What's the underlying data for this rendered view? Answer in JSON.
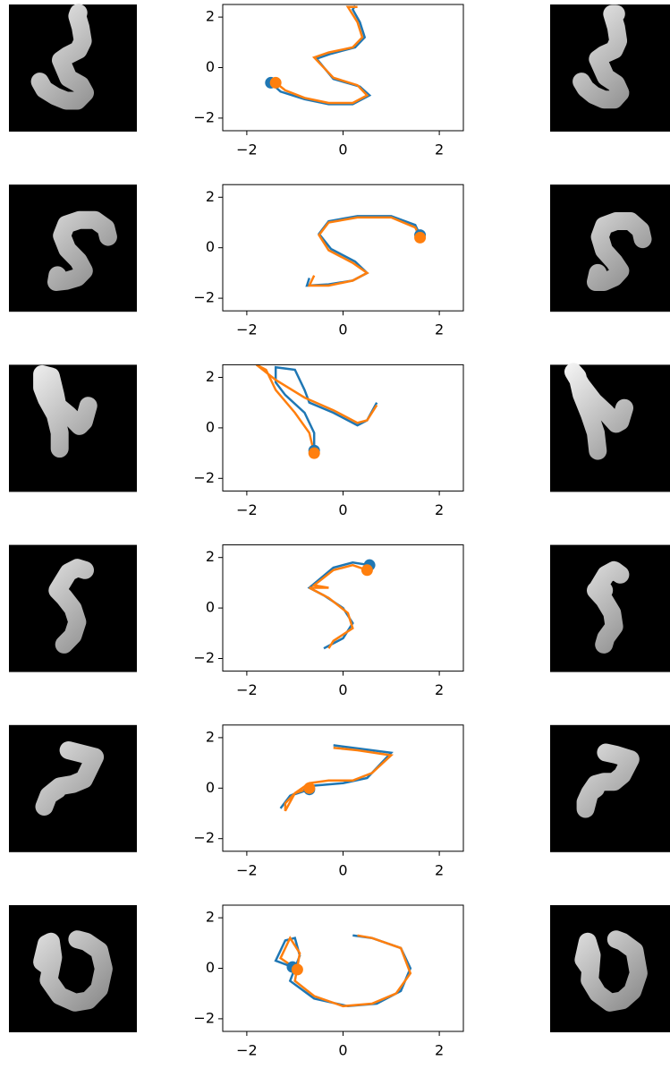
{
  "chart_data": [
    {
      "type": "line",
      "start_marker": true,
      "xlim": [
        -2.5,
        2.5
      ],
      "ylim": [
        -2.5,
        2.5
      ],
      "xticks": [
        {
          "value": -2,
          "label": "−2"
        },
        0,
        2
      ],
      "yticks": [
        {
          "value": -2,
          "label": "−2"
        },
        0,
        2
      ],
      "series": [
        {
          "color": "#1f77b4",
          "x": [
            -1.5,
            -1.3,
            -0.8,
            -0.3,
            0.2,
            0.55,
            0.35,
            -0.2,
            -0.55,
            -0.25,
            0.25,
            0.45,
            0.35,
            0.2,
            0.25
          ],
          "values": [
            -0.6,
            -0.95,
            -1.25,
            -1.45,
            -1.45,
            -1.1,
            -0.75,
            -0.45,
            0.35,
            0.55,
            0.8,
            1.2,
            1.8,
            2.3,
            2.45
          ]
        },
        {
          "color": "#ff7f0e",
          "x": [
            -1.4,
            -1.2,
            -0.8,
            -0.3,
            0.2,
            0.5,
            0.3,
            -0.2,
            -0.6,
            -0.3,
            0.2,
            0.4,
            0.3,
            0.1,
            0.3
          ],
          "values": [
            -0.6,
            -0.9,
            -1.2,
            -1.4,
            -1.4,
            -1.1,
            -0.7,
            -0.4,
            0.4,
            0.6,
            0.8,
            1.2,
            1.8,
            2.4,
            2.4
          ]
        }
      ]
    },
    {
      "type": "line",
      "start_marker": true,
      "xlim": [
        -2.5,
        2.5
      ],
      "ylim": [
        -2.5,
        2.5
      ],
      "xticks": [
        {
          "value": -2,
          "label": "−2"
        },
        0,
        2
      ],
      "yticks": [
        {
          "value": -2,
          "label": "−2"
        },
        0,
        2
      ],
      "series": [
        {
          "color": "#1f77b4",
          "x": [
            1.6,
            1.5,
            1.0,
            0.3,
            -0.3,
            -0.5,
            -0.25,
            0.25,
            0.5,
            0.2,
            -0.3,
            -0.75,
            -0.7
          ],
          "values": [
            0.5,
            0.9,
            1.25,
            1.25,
            1.05,
            0.55,
            -0.05,
            -0.55,
            -1.0,
            -1.3,
            -1.45,
            -1.5,
            -1.2
          ]
        },
        {
          "color": "#ff7f0e",
          "x": [
            1.6,
            1.5,
            1.0,
            0.3,
            -0.3,
            -0.5,
            -0.3,
            0.2,
            0.5,
            0.2,
            -0.3,
            -0.7,
            -0.6
          ],
          "values": [
            0.4,
            0.8,
            1.2,
            1.2,
            1.0,
            0.5,
            -0.1,
            -0.6,
            -1.0,
            -1.3,
            -1.5,
            -1.5,
            -1.1
          ]
        }
      ]
    },
    {
      "type": "line",
      "start_marker": true,
      "xlim": [
        -2.5,
        2.5
      ],
      "ylim": [
        -2.5,
        2.5
      ],
      "xticks": [
        {
          "value": -2,
          "label": "−2"
        },
        0,
        2
      ],
      "yticks": [
        {
          "value": -2,
          "label": "−2"
        },
        0,
        2
      ],
      "series": [
        {
          "color": "#1f77b4",
          "x": [
            -0.6,
            -0.6,
            -0.8,
            -1.2,
            -1.4,
            -1.4,
            -1.0,
            -0.8,
            -0.7,
            -0.2,
            0.3,
            0.5,
            0.7
          ],
          "values": [
            -0.9,
            -0.2,
            0.6,
            1.3,
            1.8,
            2.4,
            2.3,
            1.5,
            1.0,
            0.6,
            0.1,
            0.3,
            1.0
          ]
        },
        {
          "color": "#ff7f0e",
          "x": [
            -0.6,
            -0.7,
            -1.0,
            -1.4,
            -1.6,
            -1.8,
            -1.4,
            -0.8,
            -0.2,
            0.3,
            0.5,
            0.7
          ],
          "values": [
            -1.0,
            -0.2,
            0.6,
            1.5,
            2.3,
            2.5,
            1.9,
            1.2,
            0.7,
            0.2,
            0.3,
            0.9
          ]
        }
      ]
    },
    {
      "type": "line",
      "start_marker": true,
      "xlim": [
        -2.5,
        2.5
      ],
      "ylim": [
        -2.5,
        2.5
      ],
      "xticks": [
        {
          "value": -2,
          "label": "−2"
        },
        0,
        2
      ],
      "yticks": [
        {
          "value": -2,
          "label": "−2"
        },
        0,
        2
      ],
      "series": [
        {
          "color": "#1f77b4",
          "x": [
            0.55,
            0.2,
            -0.2,
            -0.7,
            -0.4,
            0.0,
            0.2,
            0.0,
            -0.4
          ],
          "values": [
            1.7,
            1.8,
            1.6,
            0.8,
            0.5,
            0.0,
            -0.6,
            -1.2,
            -1.6
          ]
        },
        {
          "color": "#ff7f0e",
          "x": [
            0.5,
            0.2,
            -0.2,
            -0.6,
            -0.3,
            -0.7,
            -0.3,
            0.1,
            0.2,
            -0.2,
            -0.3
          ],
          "values": [
            1.5,
            1.7,
            1.5,
            0.9,
            0.8,
            0.8,
            0.4,
            -0.2,
            -0.8,
            -1.3,
            -1.6
          ]
        }
      ]
    },
    {
      "type": "line",
      "start_marker": true,
      "xlim": [
        -2.5,
        2.5
      ],
      "ylim": [
        -2.5,
        2.5
      ],
      "xticks": [
        {
          "value": -2,
          "label": "−2"
        },
        0,
        2
      ],
      "yticks": [
        {
          "value": -2,
          "label": "−2"
        },
        0,
        2
      ],
      "series": [
        {
          "color": "#1f77b4",
          "x": [
            -0.7,
            -1.1,
            -1.3,
            -1.1,
            -0.6,
            0.0,
            0.5,
            1.0,
            0.6,
            -0.2
          ],
          "values": [
            -0.05,
            -0.3,
            -0.8,
            -0.3,
            0.1,
            0.2,
            0.4,
            1.4,
            1.5,
            1.7
          ]
        },
        {
          "color": "#ff7f0e",
          "x": [
            -0.7,
            -1.0,
            -1.2,
            -1.2,
            -1.0,
            -0.7,
            -0.3,
            0.2,
            0.6,
            1.0,
            0.3,
            -0.2
          ],
          "values": [
            0.0,
            -0.2,
            -0.6,
            -0.9,
            -0.2,
            0.2,
            0.3,
            0.3,
            0.6,
            1.3,
            1.5,
            1.6
          ]
        }
      ]
    },
    {
      "type": "line",
      "start_marker": true,
      "xlim": [
        -2.5,
        2.5
      ],
      "ylim": [
        -2.5,
        2.5
      ],
      "xticks": [
        {
          "value": -2,
          "label": "−2"
        },
        0,
        2
      ],
      "yticks": [
        {
          "value": -2,
          "label": "−2"
        },
        0,
        2
      ],
      "series": [
        {
          "color": "#1f77b4",
          "x": [
            -1.05,
            -1.4,
            -1.2,
            -1.0,
            -0.9,
            -1.1,
            -0.6,
            0.1,
            0.7,
            1.2,
            1.4,
            1.2,
            0.6,
            0.2
          ],
          "values": [
            0.05,
            0.3,
            1.1,
            1.2,
            0.5,
            -0.5,
            -1.2,
            -1.5,
            -1.4,
            -0.9,
            0.0,
            0.8,
            1.2,
            1.3
          ]
        },
        {
          "color": "#ff7f0e",
          "x": [
            -0.95,
            -1.3,
            -1.1,
            -0.9,
            -1.0,
            -0.6,
            0.0,
            0.6,
            1.1,
            1.4,
            1.2,
            0.6,
            0.3
          ],
          "values": [
            -0.05,
            0.4,
            1.2,
            0.6,
            -0.5,
            -1.1,
            -1.5,
            -1.4,
            -1.0,
            -0.2,
            0.8,
            1.2,
            1.3
          ]
        }
      ]
    }
  ]
}
